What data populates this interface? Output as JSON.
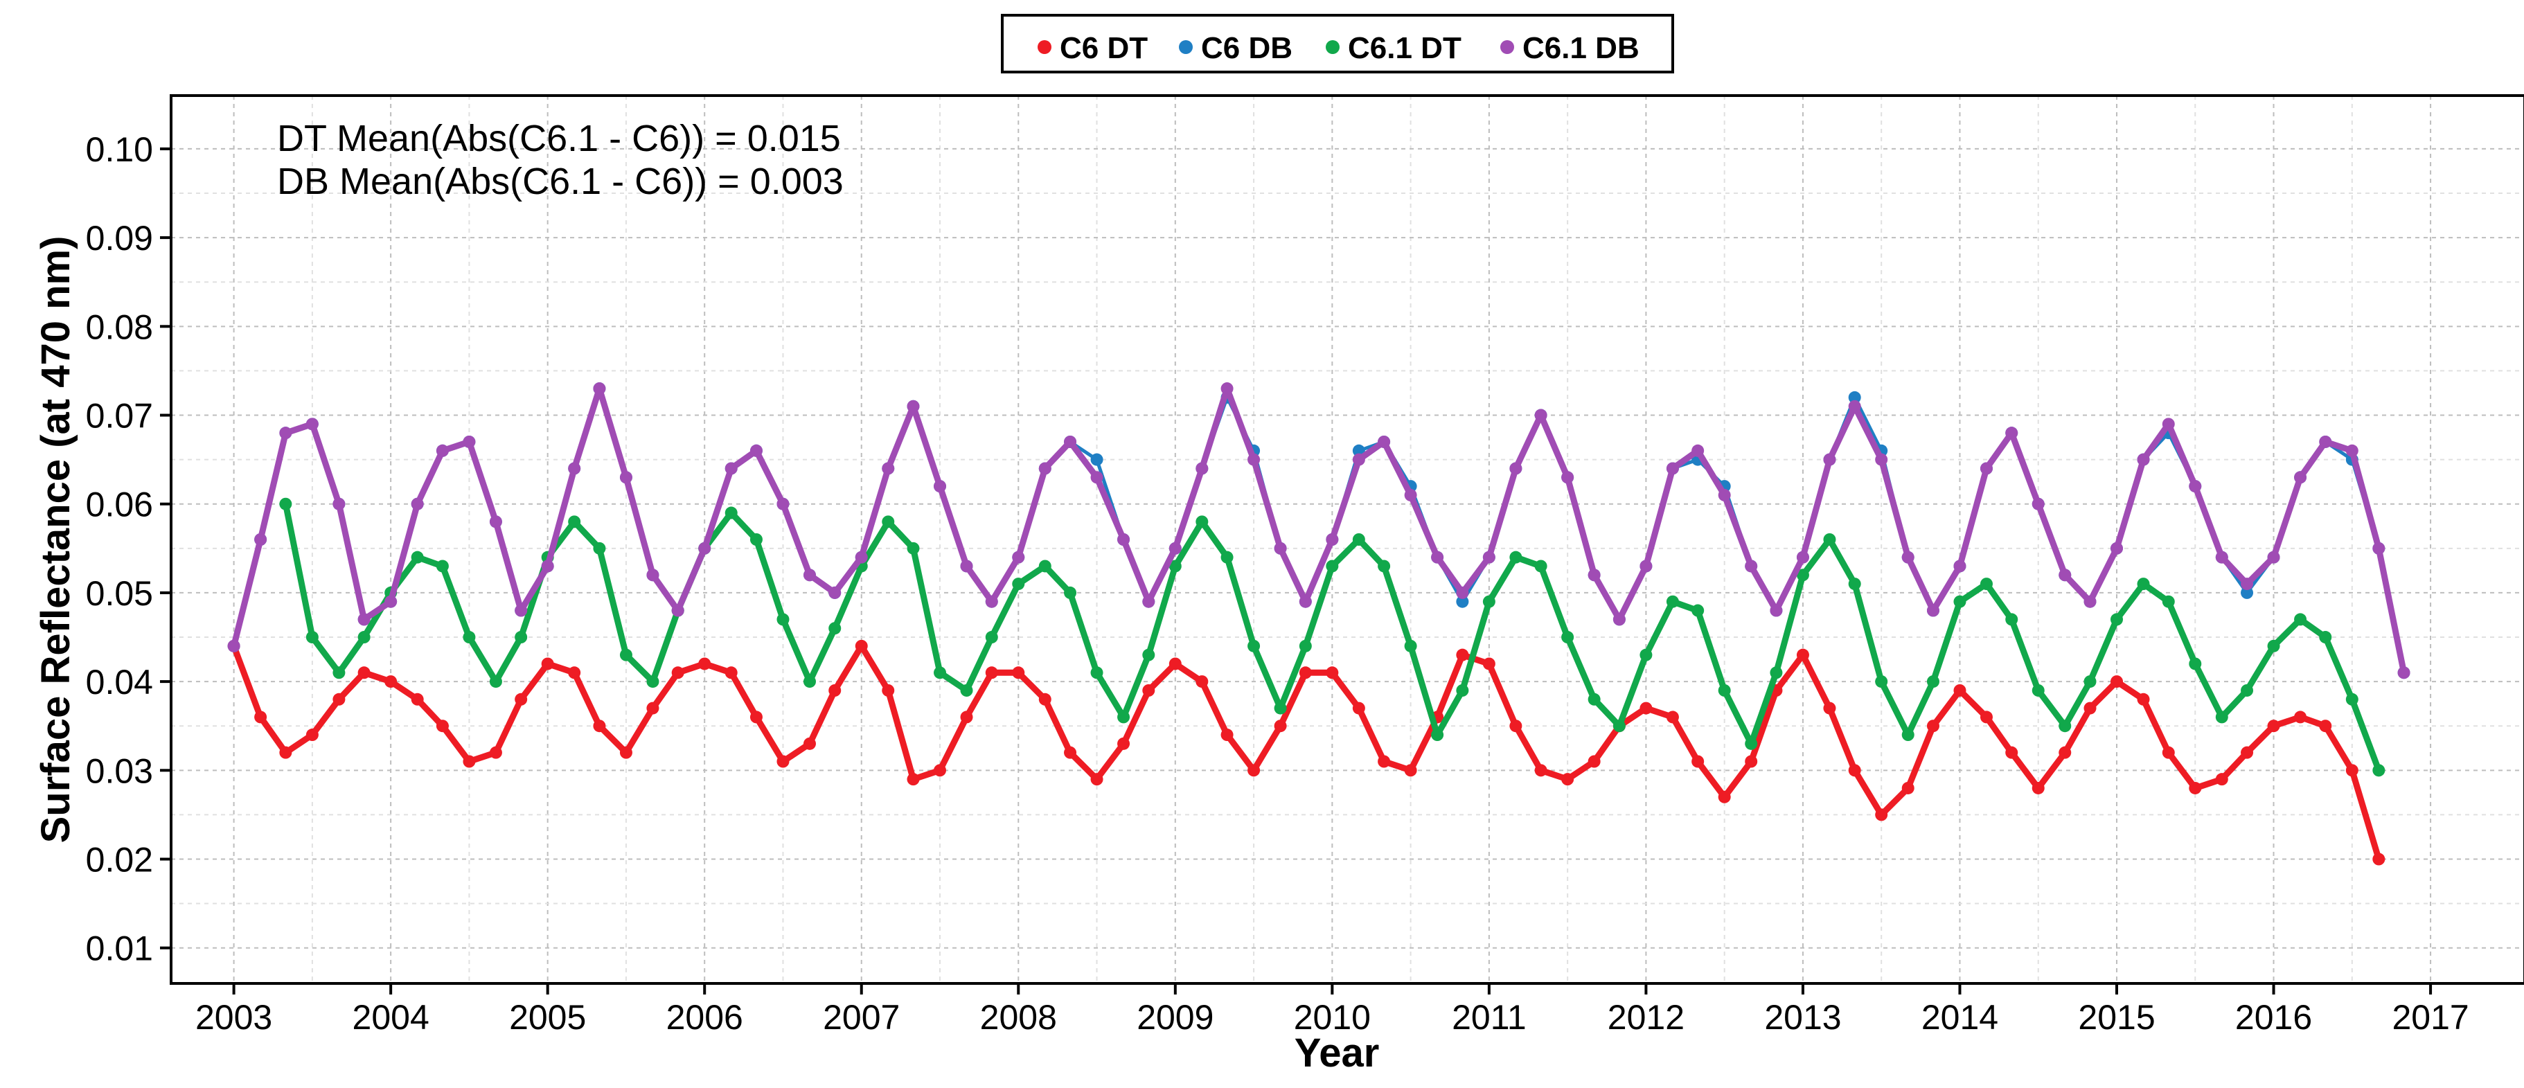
{
  "chart_data": {
    "type": "scatter",
    "xlabel": "Year",
    "ylabel": "Surface Reflectance (at 470 nm)",
    "xlim": [
      2002.6,
      2017.6
    ],
    "ylim": [
      0.006,
      0.106
    ],
    "x_ticks": [
      2003,
      2004,
      2005,
      2006,
      2007,
      2008,
      2009,
      2010,
      2011,
      2012,
      2013,
      2014,
      2015,
      2016,
      2017
    ],
    "x_tick_labels": [
      "2003",
      "2004",
      "2005",
      "2006",
      "2007",
      "2008",
      "2009",
      "2010",
      "2011",
      "2012",
      "2013",
      "2014",
      "2015",
      "2016",
      "2017"
    ],
    "y_ticks": [
      0.01,
      0.02,
      0.03,
      0.04,
      0.05,
      0.06,
      0.07,
      0.08,
      0.09,
      0.1
    ],
    "y_tick_labels": [
      "0.01",
      "0.02",
      "0.03",
      "0.04",
      "0.05",
      "0.06",
      "0.07",
      "0.08",
      "0.09",
      "0.10"
    ],
    "grid": true,
    "legend_position": "top-center",
    "annotations": [
      "DT Mean(Abs(C6.1 - C6)) = 0.015",
      "DB Mean(Abs(C6.1 - C6)) = 0.003"
    ],
    "series": [
      {
        "name": "C6 DT",
        "color": "#ee1c24",
        "style": "points+line",
        "x": [
          2003.0,
          2003.17,
          2003.33,
          2003.5,
          2003.67,
          2003.83,
          2004.0,
          2004.17,
          2004.33,
          2004.5,
          2004.67,
          2004.83,
          2005.0,
          2005.17,
          2005.33,
          2005.5,
          2005.67,
          2005.83,
          2006.0,
          2006.17,
          2006.33,
          2006.5,
          2006.67,
          2006.83,
          2007.0,
          2007.17,
          2007.33,
          2007.5,
          2007.67,
          2007.83,
          2008.0,
          2008.17,
          2008.33,
          2008.5,
          2008.67,
          2008.83,
          2009.0,
          2009.17,
          2009.33,
          2009.5,
          2009.67,
          2009.83,
          2010.0,
          2010.17,
          2010.33,
          2010.5,
          2010.67,
          2010.83,
          2011.0,
          2011.17,
          2011.33,
          2011.5,
          2011.67,
          2011.83,
          2012.0,
          2012.17,
          2012.33,
          2012.5,
          2012.67,
          2012.83,
          2013.0,
          2013.17,
          2013.33,
          2013.5,
          2013.67,
          2013.83,
          2014.0,
          2014.17,
          2014.33,
          2014.5,
          2014.67,
          2014.83,
          2015.0,
          2015.17,
          2015.33,
          2015.5,
          2015.67,
          2015.83,
          2016.0,
          2016.17,
          2016.33,
          2016.5,
          2016.67
        ],
        "values": [
          0.044,
          0.036,
          0.032,
          0.034,
          0.038,
          0.041,
          0.04,
          0.038,
          0.035,
          0.031,
          0.032,
          0.038,
          0.042,
          0.041,
          0.035,
          0.032,
          0.037,
          0.041,
          0.042,
          0.041,
          0.036,
          0.031,
          0.033,
          0.039,
          0.044,
          0.039,
          0.029,
          0.03,
          0.036,
          0.041,
          0.041,
          0.038,
          0.032,
          0.029,
          0.033,
          0.039,
          0.042,
          0.04,
          0.034,
          0.03,
          0.035,
          0.041,
          0.041,
          0.037,
          0.031,
          0.03,
          0.036,
          0.043,
          0.042,
          0.035,
          0.03,
          0.029,
          0.031,
          0.035,
          0.037,
          0.036,
          0.031,
          0.027,
          0.031,
          0.039,
          0.043,
          0.037,
          0.03,
          0.025,
          0.028,
          0.035,
          0.039,
          0.036,
          0.032,
          0.028,
          0.032,
          0.037,
          0.04,
          0.038,
          0.032,
          0.028,
          0.029,
          0.032,
          0.035,
          0.036,
          0.035,
          0.03,
          0.02
        ]
      },
      {
        "name": "C6 DB",
        "color": "#1f7fc4",
        "style": "points+line",
        "x": [
          2003.0,
          2003.17,
          2003.33,
          2003.5,
          2003.67,
          2003.83,
          2004.0,
          2004.17,
          2004.33,
          2004.5,
          2004.67,
          2004.83,
          2005.0,
          2005.17,
          2005.33,
          2005.5,
          2005.67,
          2005.83,
          2006.0,
          2006.17,
          2006.33,
          2006.5,
          2006.67,
          2006.83,
          2007.0,
          2007.17,
          2007.33,
          2007.5,
          2007.67,
          2007.83,
          2008.0,
          2008.17,
          2008.33,
          2008.5,
          2008.67,
          2008.83,
          2009.0,
          2009.17,
          2009.33,
          2009.5,
          2009.67,
          2009.83,
          2010.0,
          2010.17,
          2010.33,
          2010.5,
          2010.67,
          2010.83,
          2011.0,
          2011.17,
          2011.33,
          2011.5,
          2011.67,
          2011.83,
          2012.0,
          2012.17,
          2012.33,
          2012.5,
          2012.67,
          2012.83,
          2013.0,
          2013.17,
          2013.33,
          2013.5,
          2013.67,
          2013.83,
          2014.0,
          2014.17,
          2014.33,
          2014.5,
          2014.67,
          2014.83,
          2015.0,
          2015.17,
          2015.33,
          2015.5,
          2015.67,
          2015.83,
          2016.0,
          2016.17,
          2016.33,
          2016.5,
          2016.67,
          2016.83
        ],
        "values": [
          0.044,
          0.056,
          0.068,
          0.069,
          0.06,
          0.047,
          0.049,
          0.06,
          0.066,
          0.067,
          0.058,
          0.048,
          0.053,
          0.064,
          0.073,
          0.063,
          0.052,
          0.048,
          0.055,
          0.064,
          0.066,
          0.06,
          0.052,
          0.05,
          0.054,
          0.064,
          0.071,
          0.062,
          0.053,
          0.049,
          0.054,
          0.064,
          0.067,
          0.065,
          0.056,
          0.049,
          0.055,
          0.064,
          0.072,
          0.066,
          0.055,
          0.049,
          0.056,
          0.066,
          0.067,
          0.062,
          0.054,
          0.049,
          0.054,
          0.064,
          0.07,
          0.063,
          0.052,
          0.047,
          0.053,
          0.064,
          0.065,
          0.062,
          0.053,
          0.048,
          0.054,
          0.065,
          0.072,
          0.066,
          0.054,
          0.048,
          0.053,
          0.064,
          0.068,
          0.06,
          0.052,
          0.049,
          0.055,
          0.065,
          0.068,
          0.062,
          0.054,
          0.05,
          0.054,
          0.063,
          0.067,
          0.065,
          0.055,
          0.041
        ]
      },
      {
        "name": "C6.1 DT",
        "color": "#11a84b",
        "style": "points+line",
        "x": [
          2003.33,
          2003.5,
          2003.67,
          2003.83,
          2004.0,
          2004.17,
          2004.33,
          2004.5,
          2004.67,
          2004.83,
          2005.0,
          2005.17,
          2005.33,
          2005.5,
          2005.67,
          2005.83,
          2006.0,
          2006.17,
          2006.33,
          2006.5,
          2006.67,
          2006.83,
          2007.0,
          2007.17,
          2007.33,
          2007.5,
          2007.67,
          2007.83,
          2008.0,
          2008.17,
          2008.33,
          2008.5,
          2008.67,
          2008.83,
          2009.0,
          2009.17,
          2009.33,
          2009.5,
          2009.67,
          2009.83,
          2010.0,
          2010.17,
          2010.33,
          2010.5,
          2010.67,
          2010.83,
          2011.0,
          2011.17,
          2011.33,
          2011.5,
          2011.67,
          2011.83,
          2012.0,
          2012.17,
          2012.33,
          2012.5,
          2012.67,
          2012.83,
          2013.0,
          2013.17,
          2013.33,
          2013.5,
          2013.67,
          2013.83,
          2014.0,
          2014.17,
          2014.33,
          2014.5,
          2014.67,
          2014.83,
          2015.0,
          2015.17,
          2015.33,
          2015.5,
          2015.67,
          2015.83,
          2016.0,
          2016.17,
          2016.33,
          2016.5,
          2016.67
        ],
        "values": [
          0.06,
          0.045,
          0.041,
          0.045,
          0.05,
          0.054,
          0.053,
          0.045,
          0.04,
          0.045,
          0.054,
          0.058,
          0.055,
          0.043,
          0.04,
          0.048,
          0.055,
          0.059,
          0.056,
          0.047,
          0.04,
          0.046,
          0.053,
          0.058,
          0.055,
          0.041,
          0.039,
          0.045,
          0.051,
          0.053,
          0.05,
          0.041,
          0.036,
          0.043,
          0.053,
          0.058,
          0.054,
          0.044,
          0.037,
          0.044,
          0.053,
          0.056,
          0.053,
          0.044,
          0.034,
          0.039,
          0.049,
          0.054,
          0.053,
          0.045,
          0.038,
          0.035,
          0.043,
          0.049,
          0.048,
          0.039,
          0.033,
          0.041,
          0.052,
          0.056,
          0.051,
          0.04,
          0.034,
          0.04,
          0.049,
          0.051,
          0.047,
          0.039,
          0.035,
          0.04,
          0.047,
          0.051,
          0.049,
          0.042,
          0.036,
          0.039,
          0.044,
          0.047,
          0.045,
          0.038,
          0.03
        ]
      },
      {
        "name": "C6.1 DB",
        "color": "#a04cb4",
        "style": "points+line",
        "x": [
          2003.0,
          2003.17,
          2003.33,
          2003.5,
          2003.67,
          2003.83,
          2004.0,
          2004.17,
          2004.33,
          2004.5,
          2004.67,
          2004.83,
          2005.0,
          2005.17,
          2005.33,
          2005.5,
          2005.67,
          2005.83,
          2006.0,
          2006.17,
          2006.33,
          2006.5,
          2006.67,
          2006.83,
          2007.0,
          2007.17,
          2007.33,
          2007.5,
          2007.67,
          2007.83,
          2008.0,
          2008.17,
          2008.33,
          2008.5,
          2008.67,
          2008.83,
          2009.0,
          2009.17,
          2009.33,
          2009.5,
          2009.67,
          2009.83,
          2010.0,
          2010.17,
          2010.33,
          2010.5,
          2010.67,
          2010.83,
          2011.0,
          2011.17,
          2011.33,
          2011.5,
          2011.67,
          2011.83,
          2012.0,
          2012.17,
          2012.33,
          2012.5,
          2012.67,
          2012.83,
          2013.0,
          2013.17,
          2013.33,
          2013.5,
          2013.67,
          2013.83,
          2014.0,
          2014.17,
          2014.33,
          2014.5,
          2014.67,
          2014.83,
          2015.0,
          2015.17,
          2015.33,
          2015.5,
          2015.67,
          2015.83,
          2016.0,
          2016.17,
          2016.33,
          2016.5,
          2016.67,
          2016.83
        ],
        "values": [
          0.044,
          0.056,
          0.068,
          0.069,
          0.06,
          0.047,
          0.049,
          0.06,
          0.066,
          0.067,
          0.058,
          0.048,
          0.053,
          0.064,
          0.073,
          0.063,
          0.052,
          0.048,
          0.055,
          0.064,
          0.066,
          0.06,
          0.052,
          0.05,
          0.054,
          0.064,
          0.071,
          0.062,
          0.053,
          0.049,
          0.054,
          0.064,
          0.067,
          0.063,
          0.056,
          0.049,
          0.055,
          0.064,
          0.073,
          0.065,
          0.055,
          0.049,
          0.056,
          0.065,
          0.067,
          0.061,
          0.054,
          0.05,
          0.054,
          0.064,
          0.07,
          0.063,
          0.052,
          0.047,
          0.053,
          0.064,
          0.066,
          0.061,
          0.053,
          0.048,
          0.054,
          0.065,
          0.071,
          0.065,
          0.054,
          0.048,
          0.053,
          0.064,
          0.068,
          0.06,
          0.052,
          0.049,
          0.055,
          0.065,
          0.069,
          0.062,
          0.054,
          0.051,
          0.054,
          0.063,
          0.067,
          0.066,
          0.055,
          0.041
        ]
      }
    ]
  }
}
